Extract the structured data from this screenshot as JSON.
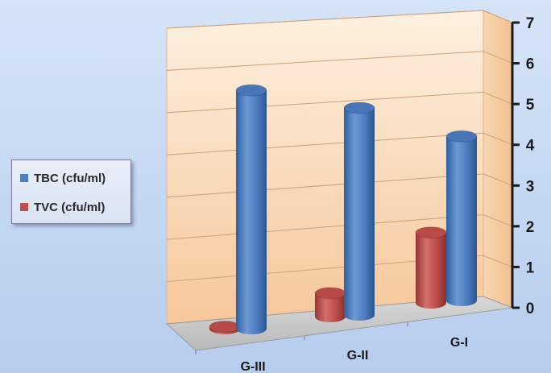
{
  "chart_data": {
    "type": "bar",
    "categories": [
      "G-III",
      "G-II",
      "G-I"
    ],
    "series": [
      {
        "name": "TBC (cfu/ml)",
        "values": [
          6.1,
          5.3,
          4.2
        ],
        "color": "#4f7ec2"
      },
      {
        "name": "TVC (cfu/ml)",
        "values": [
          0.05,
          0.6,
          1.8
        ],
        "color": "#c0504d"
      }
    ],
    "ylim": [
      0,
      7
    ],
    "yticks": [
      "0",
      "1",
      "2",
      "3",
      "4",
      "5",
      "6",
      "7"
    ],
    "grid": true,
    "legend_position": "left"
  }
}
